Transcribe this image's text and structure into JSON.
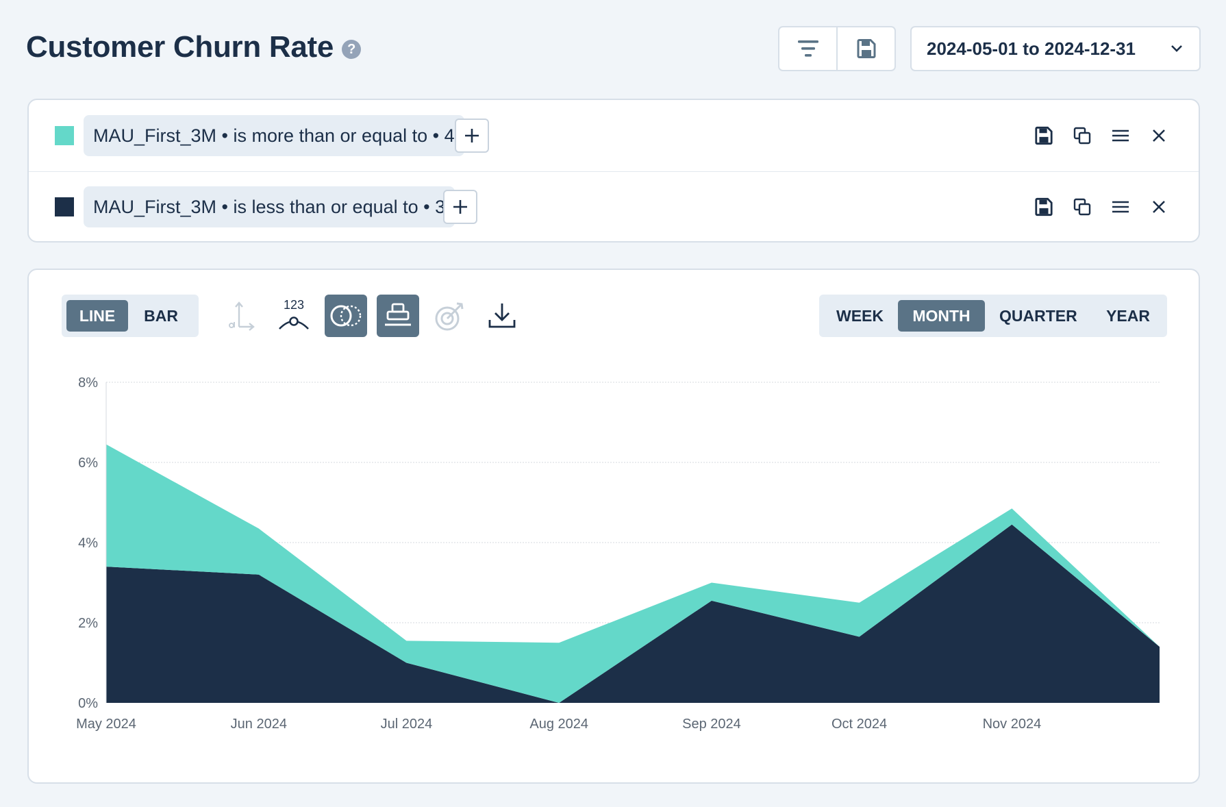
{
  "page": {
    "title": "Customer Churn Rate",
    "help_glyph": "?"
  },
  "toolbar": {
    "icons": [
      "filter-icon",
      "save-icon"
    ],
    "date_range": "2024-05-01 to 2024-12-31"
  },
  "segments": [
    {
      "color": "#64d8c9",
      "label": "MAU_First_3M • is more than or equal to • 4"
    },
    {
      "color": "#1c2f48",
      "label": "MAU_First_3M • is less than or equal to • 3"
    }
  ],
  "segment_actions": [
    "save-icon",
    "duplicate-icon",
    "menu-icon",
    "close-icon"
  ],
  "chart_controls": {
    "chart_type": {
      "options": [
        "LINE",
        "BAR"
      ],
      "selected": "LINE"
    },
    "tools": [
      "axis-icon",
      "data-labels-icon",
      "overlap-icon",
      "stack-icon",
      "target-icon",
      "download-icon"
    ],
    "periods": {
      "options": [
        "WEEK",
        "MONTH",
        "QUARTER",
        "YEAR"
      ],
      "selected": "MONTH"
    }
  },
  "colors": {
    "teal": "#64d8c9",
    "navy": "#1c2f48",
    "accent": "#5a7386"
  },
  "chart_data": {
    "type": "area",
    "stacked": true,
    "x": [
      "2024-05-01",
      "2024-06-01",
      "2024-07-01",
      "2024-08-01",
      "2024-09-01",
      "2024-10-01",
      "2024-11-01",
      "2024-12-01"
    ],
    "x_tick_labels": [
      "May 2024",
      "Jun 2024",
      "Jul 2024",
      "Aug 2024",
      "Sep 2024",
      "Oct 2024",
      "Nov 2024"
    ],
    "y_tick_labels": [
      "0%",
      "2%",
      "4%",
      "6%",
      "8%"
    ],
    "ylim": [
      0,
      8
    ],
    "y_unit": "%",
    "grid": true,
    "series": [
      {
        "color": "#1c2f48",
        "values": [
          3.4,
          3.2,
          1.0,
          0.0,
          2.55,
          1.65,
          4.45,
          1.4
        ]
      },
      {
        "color": "#64d8c9",
        "values": [
          3.05,
          1.15,
          0.55,
          1.5,
          0.45,
          0.85,
          0.4,
          0.0
        ]
      }
    ]
  }
}
